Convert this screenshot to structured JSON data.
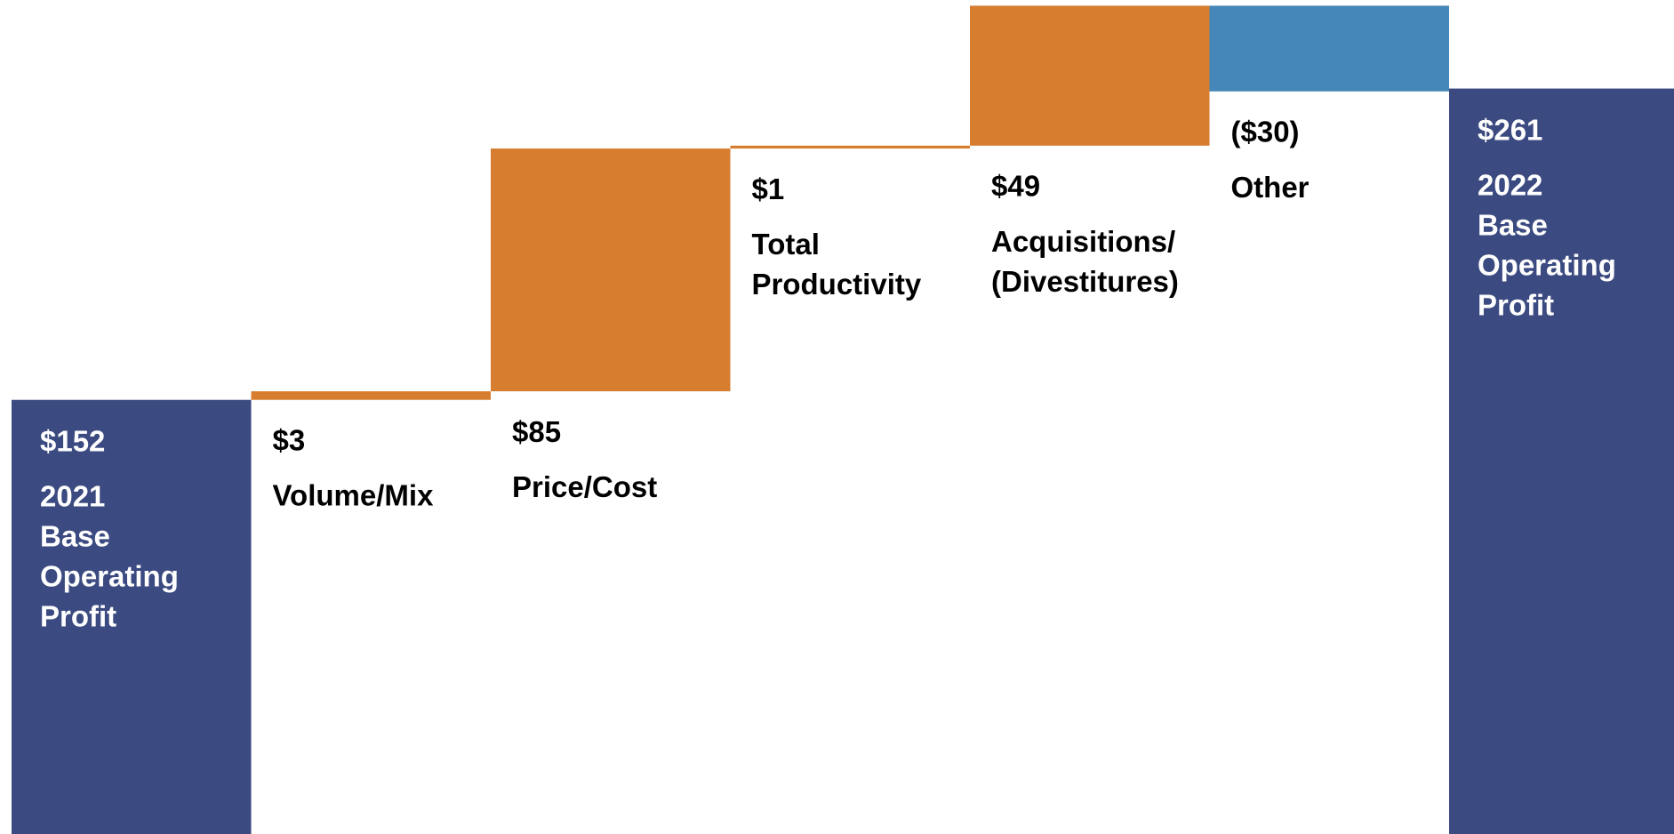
{
  "chart_data": {
    "type": "waterfall",
    "categories": [
      "2021 Base Operating Profit",
      "Volume/Mix",
      "Price/Cost",
      "Total Productivity",
      "Acquisitions/ (Divestitures)",
      "Other",
      "2022 Base Operating Profit"
    ],
    "values": [
      152,
      3,
      85,
      1,
      49,
      -30,
      261
    ],
    "value_labels": [
      "$152",
      "$3",
      "$85",
      "$1",
      "$49",
      "($30)",
      "$261"
    ],
    "measure": [
      "total",
      "relative",
      "relative",
      "relative",
      "relative",
      "relative",
      "total"
    ],
    "colors": {
      "total": "#3b4a80",
      "increase": "#d77d30",
      "decrease": "#4587b8"
    },
    "ylim": [
      0,
      292
    ]
  }
}
